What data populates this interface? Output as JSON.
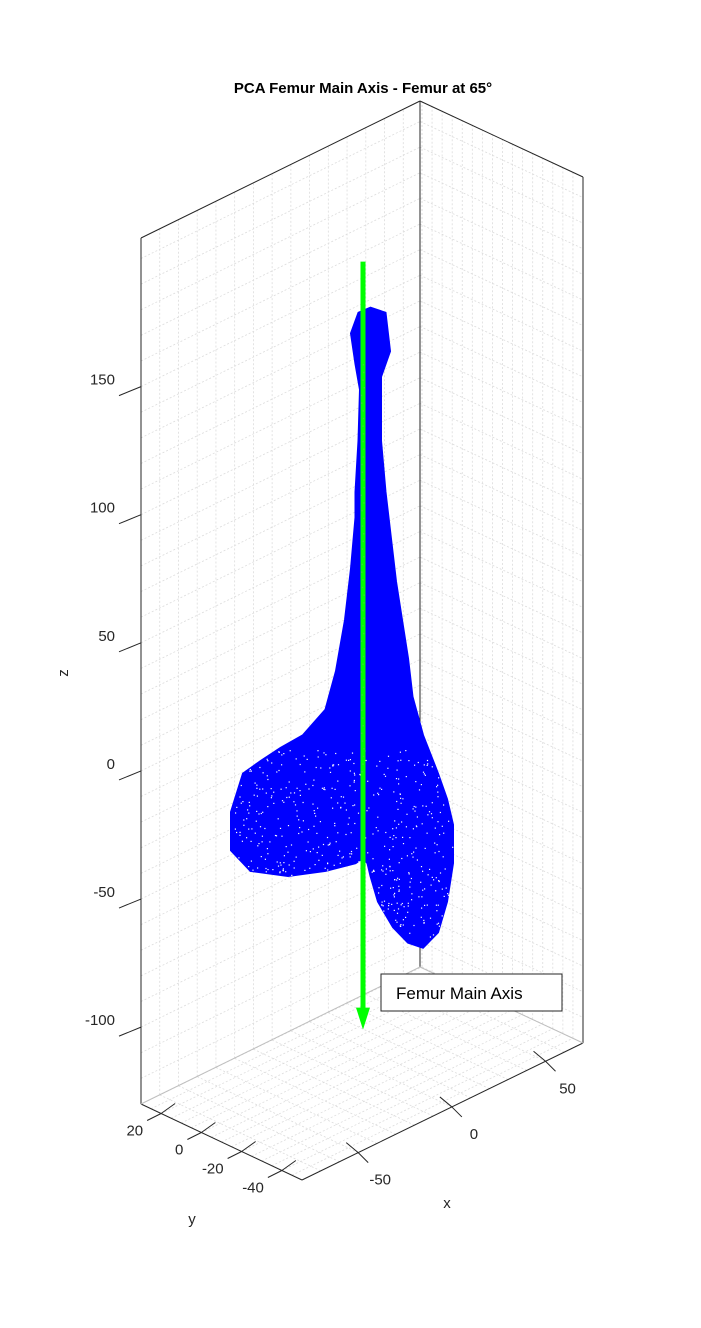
{
  "chart_data": {
    "type": "scatter",
    "title": "PCA Femur Main Axis - Femur at 65°",
    "xlabel": "x",
    "ylabel": "y",
    "zlabel": "z",
    "xticks": [
      -50,
      0,
      50
    ],
    "yticks": [
      20,
      0,
      -20,
      -40
    ],
    "zticks": [
      150,
      100,
      50,
      0,
      -50,
      -100
    ],
    "grid": true,
    "legend": {
      "entries": [
        "Femur Main Axis"
      ],
      "placement": "lower-right"
    },
    "series": [
      {
        "kind": "point-cloud",
        "color": "#0000ff",
        "outline_xz": [
          [
            5,
            172
          ],
          [
            15,
            170
          ],
          [
            18,
            155
          ],
          [
            12,
            145
          ],
          [
            12,
            120
          ],
          [
            15,
            100
          ],
          [
            19,
            80
          ],
          [
            22,
            65
          ],
          [
            26,
            50
          ],
          [
            30,
            35
          ],
          [
            33,
            20
          ],
          [
            40,
            5
          ],
          [
            50,
            -10
          ],
          [
            56,
            -20
          ],
          [
            60,
            -30
          ],
          [
            60,
            -45
          ],
          [
            56,
            -60
          ],
          [
            50,
            -72
          ],
          [
            40,
            -78
          ],
          [
            30,
            -76
          ],
          [
            20,
            -70
          ],
          [
            10,
            -60
          ],
          [
            5,
            -50
          ],
          [
            3,
            -45
          ],
          [
            0,
            -43
          ],
          [
            -5,
            -45
          ],
          [
            -25,
            -48
          ],
          [
            -50,
            -50
          ],
          [
            -75,
            -48
          ],
          [
            -88,
            -40
          ],
          [
            -88,
            -25
          ],
          [
            -80,
            -10
          ],
          [
            -68,
            -5
          ],
          [
            -55,
            0
          ],
          [
            -40,
            5
          ],
          [
            -25,
            15
          ],
          [
            -18,
            30
          ],
          [
            -12,
            50
          ],
          [
            -8,
            70
          ],
          [
            -5,
            90
          ],
          [
            -5,
            100
          ],
          [
            -3,
            120
          ],
          [
            -2,
            140
          ],
          [
            -5,
            150
          ],
          [
            -8,
            162
          ],
          [
            -3,
            170
          ],
          [
            5,
            172
          ]
        ]
      },
      {
        "name": "Femur Main Axis",
        "kind": "arrow",
        "color": "#00ff00",
        "start": [
          0,
          0,
          190
        ],
        "end": [
          0,
          0,
          -110
        ]
      }
    ]
  },
  "colors": {
    "background": "#ffffff",
    "axis": "#262626",
    "grid": "#dcdcdc",
    "femur": "#0000ff",
    "axis_arrow": "#00ff00"
  }
}
